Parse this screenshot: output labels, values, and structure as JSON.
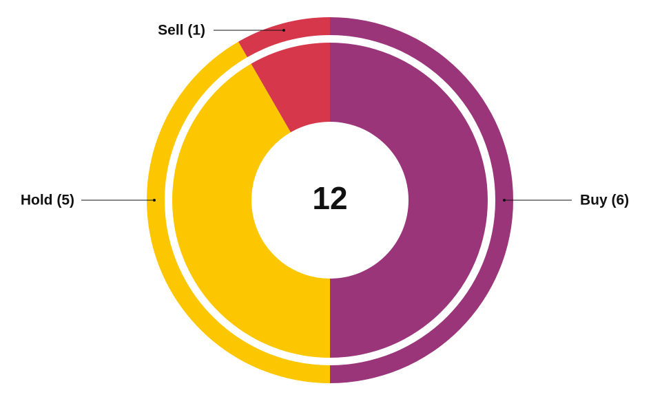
{
  "chart_data": {
    "type": "donut",
    "categories": [
      "Buy (6)",
      "Hold (5)",
      "Sell (1)"
    ],
    "values": [
      6,
      5,
      1
    ],
    "colors": [
      "#9b357a",
      "#fcc600",
      "#d7374a"
    ],
    "center_label": 12
  }
}
